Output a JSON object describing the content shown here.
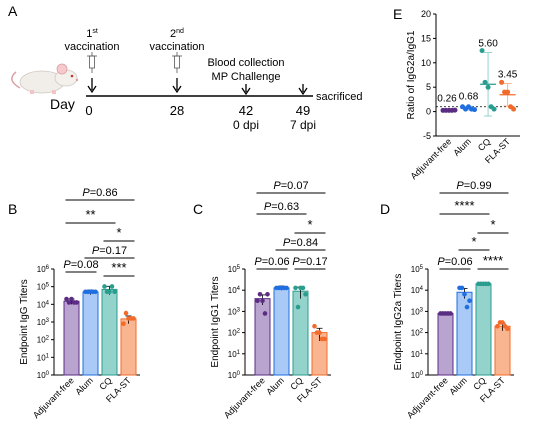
{
  "timeline": {
    "panel_letter": "A",
    "day_label": "Day",
    "axis_label": "sacrificed",
    "events": [
      {
        "day": "0",
        "line1": "1",
        "sup": "st",
        "line2": "vaccination",
        "below": []
      },
      {
        "day": "28",
        "line1": "2",
        "sup": "nd",
        "line2": "vaccination",
        "below": []
      },
      {
        "day": "42",
        "line1": "Blood collection",
        "sup": "",
        "line2": "MP Challenge",
        "below": [
          "0 dpi"
        ]
      },
      {
        "day": "49",
        "line1": "",
        "sup": "",
        "line2": "",
        "below": [
          "7 dpi"
        ]
      }
    ]
  },
  "colors": {
    "Adjuvant-free": "#5b2c83",
    "Alum": "#1f6fe0",
    "CQ": "#2a9d8f",
    "FLA-ST": "#f26b2a",
    "Adjuvant-free_bar": "#b9a3cf",
    "Alum_bar": "#a9c9f7",
    "CQ_bar": "#94d3cc",
    "FLA-ST_bar": "#f9b490"
  },
  "chart_data": [
    {
      "panel": "B",
      "type": "bar",
      "ylabel": "Endpoint IgG Titers",
      "scale": "log10",
      "ylim": [
        1,
        1000000
      ],
      "ytick_labels": [
        {
          "base": "10",
          "exp": "0"
        },
        {
          "base": "10",
          "exp": "1"
        },
        {
          "base": "10",
          "exp": "2"
        },
        {
          "base": "10",
          "exp": "3"
        },
        {
          "base": "10",
          "exp": "4"
        },
        {
          "base": "10",
          "exp": "5"
        },
        {
          "base": "10",
          "exp": "6"
        }
      ],
      "categories": [
        "Adjuvant-free",
        "Alum",
        "CQ",
        "FLA-ST"
      ],
      "values": [
        15000,
        50000,
        70000,
        1500
      ],
      "error": [
        5000,
        15000,
        35000,
        700
      ],
      "points": [
        [
          20000,
          20000,
          12800,
          12800,
          12800
        ],
        [
          51200,
          51200,
          51200,
          51200,
          51200
        ],
        [
          102400,
          51200,
          51200,
          51200,
          102400
        ],
        [
          800,
          1600,
          1600,
          3200,
          1600
        ]
      ],
      "comparisons": [
        {
          "g1": 0,
          "g2": 3,
          "label": "P=0.86",
          "is_p": true
        },
        {
          "g1": 0,
          "g2": 2,
          "label": "**",
          "is_p": false
        },
        {
          "g1": 2,
          "g2": 3,
          "label": "*",
          "is_p": false
        },
        {
          "g1": 1,
          "g2": 3,
          "label": "P=0.17",
          "is_p": true
        },
        {
          "g1": 0,
          "g2": 1,
          "label": "P=0.08",
          "is_p": true
        },
        {
          "g1": 2,
          "g2": 3,
          "label": "***",
          "is_p": false
        }
      ]
    },
    {
      "panel": "C",
      "type": "bar",
      "ylabel": "Endpoint IgG1 Titers",
      "scale": "log10",
      "ylim": [
        1,
        100000
      ],
      "ytick_labels": [
        {
          "base": "10",
          "exp": "0"
        },
        {
          "base": "10",
          "exp": "1"
        },
        {
          "base": "10",
          "exp": "2"
        },
        {
          "base": "10",
          "exp": "3"
        },
        {
          "base": "10",
          "exp": "4"
        },
        {
          "base": "10",
          "exp": "5"
        }
      ],
      "categories": [
        "Adjuvant-free",
        "Alum",
        "CQ",
        "FLA-ST"
      ],
      "values": [
        4000,
        12800,
        9000,
        100
      ],
      "error": [
        2000,
        3000,
        5000,
        60
      ],
      "points": [
        [
          3200,
          3200,
          6400,
          6400,
          800
        ],
        [
          12800,
          12800,
          12800,
          12800,
          12800
        ],
        [
          12800,
          12800,
          6400,
          1600,
          12800
        ],
        [
          200,
          100,
          50,
          100,
          50
        ]
      ],
      "comparisons": [
        {
          "g1": 0,
          "g2": 3,
          "label": "P=0.07",
          "is_p": true
        },
        {
          "g1": 0,
          "g2": 2,
          "label": "P=0.63",
          "is_p": true
        },
        {
          "g1": 2,
          "g2": 3,
          "label": "*",
          "is_p": false
        },
        {
          "g1": 1,
          "g2": 3,
          "label": "P=0.84",
          "is_p": true
        },
        {
          "g1": 0,
          "g2": 1,
          "label": "P=0.06",
          "is_p": true
        },
        {
          "g1": 2,
          "g2": 3,
          "label": "P=0.17",
          "is_p": true
        }
      ]
    },
    {
      "panel": "D",
      "type": "bar",
      "ylabel": "Endpoint IgG2a Titers",
      "scale": "log10",
      "ylim": [
        1,
        100000
      ],
      "ytick_labels": [
        {
          "base": "10",
          "exp": "0"
        },
        {
          "base": "10",
          "exp": "1"
        },
        {
          "base": "10",
          "exp": "2"
        },
        {
          "base": "10",
          "exp": "3"
        },
        {
          "base": "10",
          "exp": "4"
        },
        {
          "base": "10",
          "exp": "5"
        }
      ],
      "categories": [
        "Adjuvant-free",
        "Alum",
        "CQ",
        "FLA-ST"
      ],
      "values": [
        800,
        8000,
        20000,
        200
      ],
      "error": [
        0,
        4000,
        0,
        80
      ],
      "points": [
        [
          800,
          800,
          800,
          800,
          800
        ],
        [
          12800,
          6400,
          3200,
          12800,
          1600
        ],
        [
          20000,
          20000,
          20000,
          20000,
          20000
        ],
        [
          200,
          300,
          150,
          300,
          200
        ]
      ],
      "comparisons": [
        {
          "g1": 0,
          "g2": 3,
          "label": "P=0.99",
          "is_p": true
        },
        {
          "g1": 0,
          "g2": 2,
          "label": "****",
          "is_p": false
        },
        {
          "g1": 2,
          "g2": 3,
          "label": "*",
          "is_p": false
        },
        {
          "g1": 1,
          "g2": 2,
          "label": "*",
          "is_p": false
        },
        {
          "g1": 0,
          "g2": 1,
          "label": "P=0.06",
          "is_p": true
        },
        {
          "g1": 2,
          "g2": 3,
          "label": "****",
          "is_p": false
        }
      ]
    },
    {
      "panel": "E",
      "type": "scatter",
      "ylabel": "Ratio of IgG2a/IgG1",
      "ylim": [
        -5,
        20
      ],
      "yticks": [
        -5,
        0,
        5,
        10,
        15,
        20
      ],
      "reference_line": 1,
      "categories": [
        "Adjuvant-free",
        "Alum",
        "CQ",
        "FLA-ST"
      ],
      "means": [
        0.26,
        0.68,
        5.6,
        3.45
      ],
      "mean_labels": [
        "0.26",
        "0.68",
        "5.60",
        "3.45"
      ],
      "sd": [
        0.1,
        0.4,
        6.5,
        2.3
      ],
      "points": [
        [
          0.25,
          0.25,
          0.25,
          0.25,
          0.3
        ],
        [
          1,
          0.5,
          1,
          0.5,
          0.4
        ],
        [
          12.5,
          6,
          5,
          1,
          0.5
        ],
        [
          6,
          4,
          4,
          1,
          0.5
        ]
      ]
    }
  ]
}
